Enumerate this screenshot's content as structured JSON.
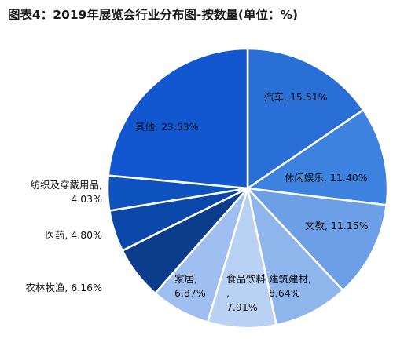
{
  "title": "图表4：2019年展览会行业分布图-按数量(单位：%)",
  "chart_data": {
    "type": "pie",
    "title": "图表4：2019年展览会行业分布图-按数量(单位：%)",
    "slices": [
      {
        "name": "汽车",
        "value": 15.51,
        "label": "汽车, 15.51%",
        "color": "#2a6fd6"
      },
      {
        "name": "休闲娱乐",
        "value": 11.4,
        "label": "休闲娱乐, 11.40%",
        "color": "#3c82de"
      },
      {
        "name": "文教",
        "value": 11.15,
        "label": "文教, 11.15%",
        "color": "#6d9fe6"
      },
      {
        "name": "建筑建材",
        "value": 8.64,
        "label": "建筑建材, 8.64%",
        "color": "#8fb6ec"
      },
      {
        "name": "食品饮料",
        "value": 7.91,
        "label": "食品饮料, 7.91%",
        "color": "#b9d1f3"
      },
      {
        "name": "家居",
        "value": 6.87,
        "label": "家居, 6.87%",
        "color": "#9ebfef"
      },
      {
        "name": "农林牧渔",
        "value": 6.16,
        "label": "农林牧渔, 6.16%",
        "color": "#0c3c8c"
      },
      {
        "name": "医药",
        "value": 4.8,
        "label": "医药, 4.80%",
        "color": "#0a47a8"
      },
      {
        "name": "纺织及穿戴用品",
        "value": 4.03,
        "label": "纺织及穿戴用品, 4.03%",
        "color": "#0d52bd"
      },
      {
        "name": "其他",
        "value": 23.53,
        "label": "其他, 23.53%",
        "color": "#1257d0"
      }
    ]
  }
}
